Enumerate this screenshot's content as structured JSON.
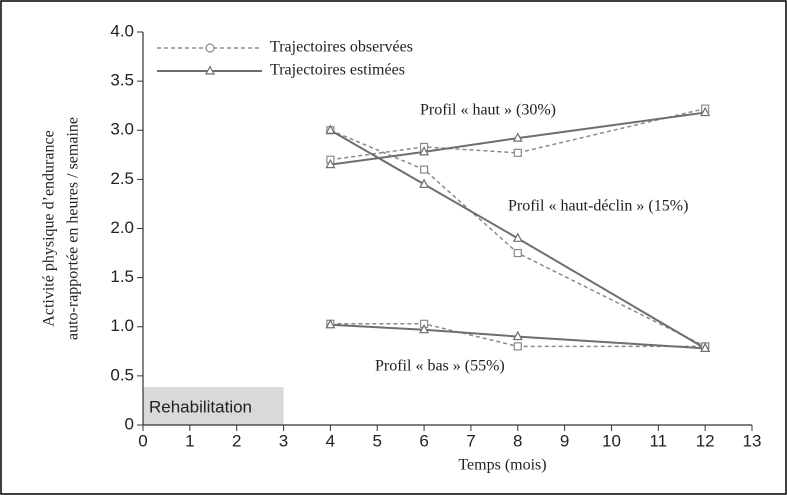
{
  "chart_data": {
    "type": "line",
    "ylabel": [
      "Activité physique d’endurance",
      "auto-rapportée en heures / semaine"
    ],
    "xlabel": "Temps (mois)",
    "x": [
      4,
      6,
      8,
      12
    ],
    "series": [
      {
        "name": "Trajectoires observées",
        "color": "#8a8a8a",
        "dashed": true,
        "marker": "square",
        "values": [
          [
            2.7,
            2.83,
            2.77,
            3.22
          ],
          [
            3.0,
            2.6,
            1.75,
            0.8
          ],
          [
            1.03,
            1.03,
            0.8,
            0.8
          ]
        ]
      },
      {
        "name": "Trajectoires estimées",
        "color": "#6e6e6e",
        "dashed": false,
        "marker": "triangle",
        "values": [
          [
            2.65,
            2.78,
            2.92,
            3.18
          ],
          [
            3.0,
            2.45,
            1.9,
            0.78
          ],
          [
            1.02,
            0.97,
            0.9,
            0.78
          ]
        ]
      }
    ],
    "annotations": [
      "Profil « haut » (30%)",
      "Profil « haut-déclin » (15%)",
      "Profil « bas » (55%)"
    ],
    "shaded_region": {
      "label": "Rehabilitation",
      "x": [
        0,
        3
      ],
      "color": "#d9d9d9"
    },
    "xlim": [
      0,
      13
    ],
    "ylim": [
      0,
      4
    ],
    "xticks": [
      0,
      1,
      2,
      3,
      4,
      5,
      6,
      7,
      8,
      9,
      10,
      11,
      12,
      13
    ],
    "yticks": [
      0,
      0.5,
      {
        "value": 1,
        "label": "1.0"
      },
      1.5,
      {
        "value": 2,
        "label": "2.0"
      },
      2.5,
      {
        "value": 3,
        "label": "3.0"
      },
      3.5,
      {
        "value": 4,
        "label": "4.0"
      }
    ]
  }
}
